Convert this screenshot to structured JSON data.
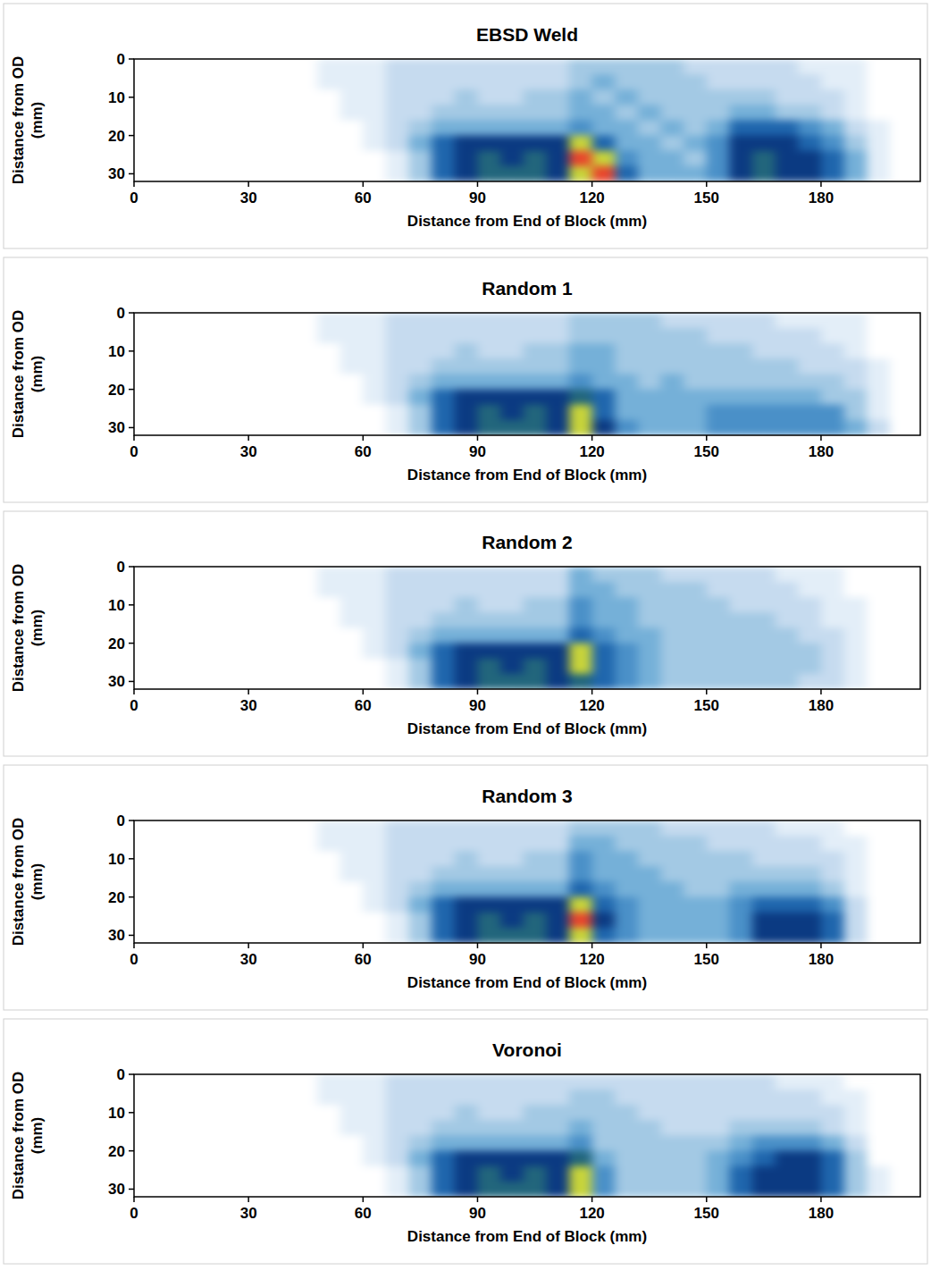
{
  "chart_data": [
    {
      "type": "heatmap",
      "title": "EBSD Weld",
      "x_label": "Distance from End of Block (mm)",
      "y_label": "Distance from OD (mm)",
      "xlim": [
        0,
        206
      ],
      "ylim": [
        0,
        32
      ],
      "xticks": [
        0,
        30,
        60,
        90,
        120,
        150,
        180
      ],
      "yticks": [
        0,
        10,
        20,
        30
      ],
      "clim": [
        0,
        10
      ],
      "x_edges": [
        42,
        48,
        54,
        60,
        66,
        72,
        78,
        84,
        90,
        96,
        102,
        108,
        114,
        120,
        126,
        132,
        138,
        144,
        150,
        156,
        162,
        168,
        174,
        180,
        186,
        192,
        198,
        204
      ],
      "y_edges": [
        0,
        4,
        8,
        12,
        16,
        20,
        24,
        28,
        32
      ],
      "cells": [
        [
          0,
          1,
          1,
          1,
          2,
          2,
          2,
          2,
          2,
          2,
          2,
          2,
          3,
          3,
          3,
          3,
          3,
          2,
          2,
          2,
          2,
          2,
          1,
          1,
          1,
          0,
          0
        ],
        [
          0,
          1,
          1,
          1,
          2,
          2,
          2,
          2,
          2,
          2,
          2,
          2,
          3,
          4,
          3,
          3,
          3,
          3,
          2,
          2,
          2,
          2,
          2,
          1,
          1,
          0,
          0
        ],
        [
          0,
          0,
          1,
          1,
          2,
          2,
          2,
          3,
          2,
          2,
          3,
          3,
          4,
          3,
          4,
          3,
          3,
          3,
          3,
          3,
          3,
          2,
          2,
          2,
          1,
          0,
          0
        ],
        [
          0,
          0,
          1,
          1,
          2,
          2,
          3,
          3,
          3,
          3,
          3,
          3,
          4,
          4,
          3,
          4,
          3,
          3,
          3,
          4,
          4,
          3,
          3,
          2,
          1,
          0,
          0
        ],
        [
          0,
          0,
          0,
          1,
          2,
          3,
          4,
          4,
          4,
          4,
          4,
          4,
          5,
          4,
          4,
          3,
          4,
          3,
          4,
          6,
          6,
          6,
          5,
          4,
          2,
          1,
          0
        ],
        [
          0,
          0,
          0,
          1,
          2,
          4,
          6,
          7,
          7,
          7,
          7,
          7,
          9,
          6,
          4,
          4,
          3,
          4,
          5,
          7,
          7,
          7,
          6,
          5,
          3,
          1,
          0
        ],
        [
          0,
          0,
          0,
          0,
          1,
          3,
          6,
          7,
          8,
          7,
          8,
          7,
          10,
          9,
          5,
          4,
          4,
          3,
          5,
          7,
          8,
          7,
          7,
          6,
          4,
          1,
          0
        ],
        [
          0,
          0,
          0,
          0,
          1,
          3,
          6,
          7,
          8,
          8,
          8,
          7,
          9,
          10,
          6,
          4,
          4,
          4,
          5,
          7,
          8,
          7,
          7,
          6,
          4,
          1,
          0
        ]
      ]
    },
    {
      "type": "heatmap",
      "title": "Random 1",
      "x_label": "Distance from End of Block (mm)",
      "y_label": "Distance from OD (mm)",
      "xlim": [
        0,
        206
      ],
      "ylim": [
        0,
        32
      ],
      "xticks": [
        0,
        30,
        60,
        90,
        120,
        150,
        180
      ],
      "yticks": [
        0,
        10,
        20,
        30
      ],
      "clim": [
        0,
        10
      ],
      "x_edges": [
        42,
        48,
        54,
        60,
        66,
        72,
        78,
        84,
        90,
        96,
        102,
        108,
        114,
        120,
        126,
        132,
        138,
        144,
        150,
        156,
        162,
        168,
        174,
        180,
        186,
        192,
        198,
        204
      ],
      "y_edges": [
        0,
        4,
        8,
        12,
        16,
        20,
        24,
        28,
        32
      ],
      "cells": [
        [
          0,
          1,
          1,
          1,
          2,
          2,
          2,
          2,
          2,
          2,
          2,
          2,
          3,
          3,
          3,
          3,
          2,
          2,
          2,
          2,
          2,
          1,
          1,
          1,
          1,
          0,
          0
        ],
        [
          0,
          1,
          1,
          1,
          2,
          2,
          2,
          2,
          2,
          2,
          2,
          2,
          3,
          3,
          3,
          3,
          3,
          3,
          2,
          2,
          2,
          2,
          2,
          1,
          1,
          0,
          0
        ],
        [
          0,
          0,
          1,
          1,
          2,
          2,
          2,
          3,
          2,
          2,
          3,
          3,
          4,
          4,
          3,
          3,
          3,
          3,
          3,
          3,
          2,
          2,
          2,
          2,
          1,
          0,
          0
        ],
        [
          0,
          0,
          1,
          1,
          2,
          2,
          3,
          3,
          3,
          3,
          3,
          3,
          4,
          4,
          3,
          3,
          3,
          3,
          3,
          3,
          3,
          3,
          2,
          2,
          2,
          1,
          0
        ],
        [
          0,
          0,
          0,
          1,
          2,
          3,
          4,
          4,
          4,
          4,
          4,
          4,
          5,
          4,
          4,
          3,
          4,
          3,
          3,
          3,
          3,
          3,
          3,
          3,
          2,
          1,
          0
        ],
        [
          0,
          0,
          0,
          1,
          2,
          4,
          6,
          7,
          7,
          7,
          7,
          7,
          8,
          6,
          4,
          4,
          4,
          4,
          4,
          4,
          4,
          4,
          4,
          3,
          3,
          1,
          0
        ],
        [
          0,
          0,
          0,
          0,
          1,
          3,
          6,
          7,
          8,
          7,
          8,
          7,
          9,
          6,
          4,
          4,
          4,
          4,
          5,
          5,
          5,
          5,
          5,
          5,
          3,
          1,
          0
        ],
        [
          0,
          0,
          0,
          0,
          1,
          3,
          6,
          7,
          8,
          8,
          8,
          7,
          9,
          7,
          5,
          4,
          4,
          4,
          5,
          5,
          5,
          5,
          5,
          5,
          4,
          2,
          0
        ]
      ]
    },
    {
      "type": "heatmap",
      "title": "Random 2",
      "x_label": "Distance from End of Block (mm)",
      "y_label": "Distance from OD (mm)",
      "xlim": [
        0,
        206
      ],
      "ylim": [
        0,
        32
      ],
      "xticks": [
        0,
        30,
        60,
        90,
        120,
        150,
        180
      ],
      "yticks": [
        0,
        10,
        20,
        30
      ],
      "clim": [
        0,
        10
      ],
      "x_edges": [
        42,
        48,
        54,
        60,
        66,
        72,
        78,
        84,
        90,
        96,
        102,
        108,
        114,
        120,
        126,
        132,
        138,
        144,
        150,
        156,
        162,
        168,
        174,
        180,
        186,
        192,
        198,
        204
      ],
      "y_edges": [
        0,
        4,
        8,
        12,
        16,
        20,
        24,
        28,
        32
      ],
      "cells": [
        [
          0,
          1,
          1,
          1,
          2,
          2,
          2,
          2,
          2,
          2,
          2,
          2,
          4,
          3,
          3,
          3,
          2,
          2,
          2,
          2,
          2,
          1,
          1,
          1,
          0,
          0,
          0
        ],
        [
          0,
          1,
          1,
          1,
          2,
          2,
          2,
          2,
          2,
          2,
          2,
          2,
          4,
          4,
          3,
          3,
          3,
          3,
          2,
          2,
          2,
          2,
          1,
          1,
          0,
          0,
          0
        ],
        [
          0,
          0,
          1,
          1,
          2,
          2,
          2,
          3,
          2,
          2,
          3,
          3,
          5,
          4,
          4,
          3,
          3,
          3,
          3,
          2,
          2,
          2,
          2,
          1,
          1,
          0,
          0
        ],
        [
          0,
          0,
          1,
          1,
          2,
          2,
          3,
          3,
          3,
          3,
          3,
          3,
          5,
          4,
          4,
          3,
          3,
          3,
          3,
          3,
          3,
          2,
          2,
          1,
          1,
          0,
          0
        ],
        [
          0,
          0,
          0,
          1,
          2,
          3,
          4,
          4,
          4,
          4,
          4,
          4,
          6,
          5,
          4,
          4,
          3,
          3,
          3,
          3,
          3,
          3,
          2,
          2,
          1,
          0,
          0
        ],
        [
          0,
          0,
          0,
          1,
          2,
          4,
          6,
          7,
          7,
          7,
          7,
          7,
          9,
          6,
          5,
          4,
          3,
          3,
          3,
          3,
          3,
          3,
          3,
          2,
          1,
          0,
          0
        ],
        [
          0,
          0,
          0,
          0,
          1,
          3,
          6,
          7,
          8,
          7,
          8,
          7,
          9,
          6,
          5,
          4,
          3,
          3,
          3,
          3,
          3,
          3,
          3,
          2,
          1,
          0,
          0
        ],
        [
          0,
          0,
          0,
          0,
          1,
          3,
          6,
          7,
          8,
          8,
          8,
          7,
          8,
          6,
          5,
          4,
          3,
          3,
          3,
          3,
          3,
          3,
          2,
          2,
          1,
          0,
          0
        ]
      ]
    },
    {
      "type": "heatmap",
      "title": "Random 3",
      "x_label": "Distance from End of Block (mm)",
      "y_label": "Distance from OD (mm)",
      "xlim": [
        0,
        206
      ],
      "ylim": [
        0,
        32
      ],
      "xticks": [
        0,
        30,
        60,
        90,
        120,
        150,
        180
      ],
      "yticks": [
        0,
        10,
        20,
        30
      ],
      "clim": [
        0,
        10
      ],
      "x_edges": [
        42,
        48,
        54,
        60,
        66,
        72,
        78,
        84,
        90,
        96,
        102,
        108,
        114,
        120,
        126,
        132,
        138,
        144,
        150,
        156,
        162,
        168,
        174,
        180,
        186,
        192,
        198,
        204
      ],
      "y_edges": [
        0,
        4,
        8,
        12,
        16,
        20,
        24,
        28,
        32
      ],
      "cells": [
        [
          0,
          1,
          1,
          1,
          2,
          2,
          2,
          2,
          2,
          2,
          2,
          2,
          3,
          3,
          3,
          3,
          2,
          2,
          2,
          2,
          2,
          1,
          1,
          1,
          0,
          0,
          0
        ],
        [
          0,
          1,
          1,
          1,
          2,
          2,
          2,
          2,
          2,
          2,
          2,
          2,
          4,
          4,
          3,
          3,
          3,
          3,
          2,
          2,
          2,
          2,
          2,
          1,
          1,
          0,
          0
        ],
        [
          0,
          0,
          1,
          1,
          2,
          2,
          2,
          3,
          2,
          2,
          3,
          3,
          5,
          4,
          4,
          3,
          3,
          3,
          3,
          3,
          2,
          2,
          2,
          2,
          1,
          0,
          0
        ],
        [
          0,
          0,
          1,
          1,
          2,
          2,
          3,
          3,
          3,
          3,
          3,
          3,
          5,
          4,
          4,
          4,
          3,
          3,
          3,
          3,
          3,
          3,
          3,
          2,
          1,
          0,
          0
        ],
        [
          0,
          0,
          0,
          1,
          2,
          3,
          4,
          4,
          4,
          4,
          4,
          4,
          6,
          5,
          4,
          4,
          4,
          3,
          3,
          4,
          4,
          4,
          4,
          3,
          1,
          0,
          0
        ],
        [
          0,
          0,
          0,
          1,
          2,
          4,
          6,
          7,
          7,
          7,
          7,
          7,
          9,
          6,
          5,
          4,
          4,
          4,
          4,
          5,
          6,
          6,
          6,
          5,
          2,
          0,
          0
        ],
        [
          0,
          0,
          0,
          0,
          1,
          3,
          6,
          7,
          8,
          7,
          8,
          7,
          10,
          7,
          5,
          4,
          4,
          4,
          4,
          5,
          7,
          7,
          7,
          6,
          2,
          0,
          0
        ],
        [
          0,
          0,
          0,
          0,
          1,
          3,
          6,
          7,
          8,
          8,
          8,
          7,
          9,
          6,
          5,
          4,
          4,
          4,
          4,
          5,
          7,
          7,
          7,
          6,
          2,
          0,
          0
        ]
      ]
    },
    {
      "type": "heatmap",
      "title": "Voronoi",
      "x_label": "Distance from End of Block (mm)",
      "y_label": "Distance from OD (mm)",
      "xlim": [
        0,
        206
      ],
      "ylim": [
        0,
        32
      ],
      "xticks": [
        0,
        30,
        60,
        90,
        120,
        150,
        180
      ],
      "yticks": [
        0,
        10,
        20,
        30
      ],
      "clim": [
        0,
        10
      ],
      "x_edges": [
        42,
        48,
        54,
        60,
        66,
        72,
        78,
        84,
        90,
        96,
        102,
        108,
        114,
        120,
        126,
        132,
        138,
        144,
        150,
        156,
        162,
        168,
        174,
        180,
        186,
        192,
        198,
        204
      ],
      "y_edges": [
        0,
        4,
        8,
        12,
        16,
        20,
        24,
        28,
        32
      ],
      "cells": [
        [
          0,
          1,
          1,
          1,
          2,
          2,
          2,
          2,
          2,
          2,
          2,
          2,
          2,
          2,
          2,
          2,
          2,
          2,
          2,
          2,
          2,
          1,
          1,
          1,
          0,
          0,
          0
        ],
        [
          0,
          1,
          1,
          1,
          2,
          2,
          2,
          2,
          2,
          2,
          2,
          2,
          3,
          3,
          2,
          2,
          2,
          2,
          2,
          2,
          2,
          2,
          2,
          1,
          1,
          0,
          0
        ],
        [
          0,
          0,
          1,
          1,
          2,
          2,
          2,
          3,
          2,
          2,
          3,
          3,
          3,
          3,
          3,
          2,
          2,
          2,
          2,
          2,
          2,
          2,
          2,
          2,
          1,
          0,
          0
        ],
        [
          0,
          0,
          1,
          1,
          2,
          2,
          3,
          3,
          3,
          3,
          3,
          3,
          4,
          3,
          3,
          3,
          2,
          2,
          2,
          3,
          3,
          3,
          3,
          2,
          1,
          0,
          0
        ],
        [
          0,
          0,
          0,
          1,
          2,
          3,
          4,
          4,
          4,
          4,
          4,
          4,
          5,
          3,
          3,
          3,
          3,
          3,
          3,
          4,
          5,
          5,
          5,
          4,
          2,
          0,
          0
        ],
        [
          0,
          0,
          0,
          1,
          2,
          4,
          6,
          7,
          7,
          7,
          7,
          7,
          8,
          4,
          3,
          3,
          3,
          3,
          4,
          5,
          6,
          7,
          7,
          6,
          3,
          0,
          0
        ],
        [
          0,
          0,
          0,
          0,
          1,
          3,
          6,
          7,
          8,
          7,
          8,
          7,
          9,
          5,
          3,
          3,
          3,
          3,
          4,
          6,
          7,
          7,
          7,
          6,
          3,
          1,
          0
        ],
        [
          0,
          0,
          0,
          0,
          1,
          3,
          6,
          7,
          8,
          8,
          8,
          7,
          9,
          5,
          3,
          3,
          3,
          3,
          4,
          6,
          7,
          7,
          7,
          6,
          3,
          1,
          0
        ]
      ]
    }
  ]
}
